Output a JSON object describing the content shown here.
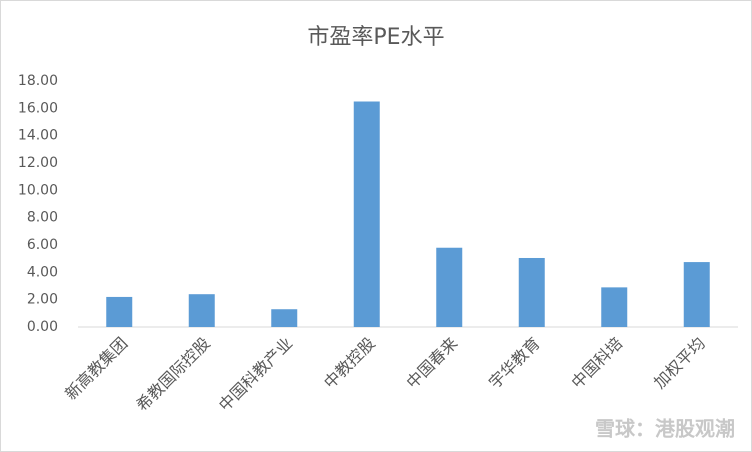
{
  "chart_data": {
    "type": "bar",
    "title": "市盈率PE水平",
    "categories": [
      "新高教集团",
      "希教国际控股",
      "中国科教产业",
      "中教控股",
      "中国春来",
      "宇华教育",
      "中国科培",
      "加权平均"
    ],
    "values": [
      2.2,
      2.4,
      1.3,
      16.5,
      5.8,
      5.05,
      2.9,
      4.75
    ],
    "color": "#5b9bd5",
    "ylim": [
      0,
      18
    ],
    "yticks": [
      {
        "value": 0,
        "label": "0.00"
      },
      {
        "value": 2,
        "label": "2.00"
      },
      {
        "value": 4,
        "label": "4.00"
      },
      {
        "value": 6,
        "label": "6.00"
      },
      {
        "value": 8,
        "label": "8.00"
      },
      {
        "value": 10,
        "label": "10.00"
      },
      {
        "value": 12,
        "label": "12.00"
      },
      {
        "value": 14,
        "label": "14.00"
      },
      {
        "value": 16,
        "label": "16.00"
      },
      {
        "value": 18,
        "label": "18.00"
      }
    ],
    "grid": false
  },
  "watermark": "雪球：港股观潮"
}
